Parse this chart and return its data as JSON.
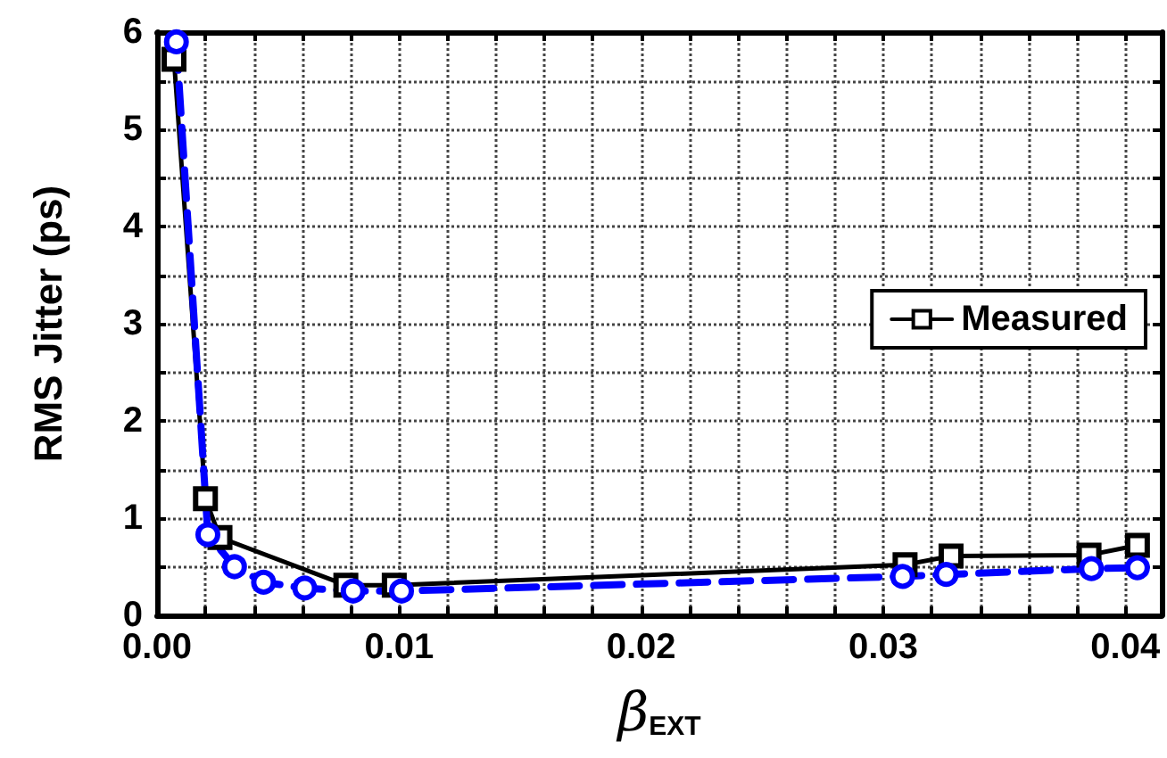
{
  "chart_data": {
    "type": "line",
    "xlabel": "β$_{EXT}$",
    "ylabel": "RMS Jitter (ps)",
    "xlim": [
      0,
      0.0415
    ],
    "ylim": [
      0,
      6
    ],
    "xticks": [
      {
        "value": 0,
        "label": "0.00"
      },
      {
        "value": 0.002,
        "label": null
      },
      {
        "value": 0.004,
        "label": null
      },
      {
        "value": 0.006,
        "label": null
      },
      {
        "value": 0.008,
        "label": null
      },
      {
        "value": 0.01,
        "label": "0.01"
      },
      {
        "value": 0.012,
        "label": null
      },
      {
        "value": 0.014,
        "label": null
      },
      {
        "value": 0.016,
        "label": null
      },
      {
        "value": 0.018,
        "label": null
      },
      {
        "value": 0.02,
        "label": "0.02"
      },
      {
        "value": 0.022,
        "label": null
      },
      {
        "value": 0.024,
        "label": null
      },
      {
        "value": 0.026,
        "label": null
      },
      {
        "value": 0.028,
        "label": null
      },
      {
        "value": 0.03,
        "label": "0.03"
      },
      {
        "value": 0.032,
        "label": null
      },
      {
        "value": 0.034,
        "label": null
      },
      {
        "value": 0.036,
        "label": null
      },
      {
        "value": 0.038,
        "label": null
      },
      {
        "value": 0.04,
        "label": "0.04"
      }
    ],
    "yticks": [
      0,
      {
        "value": 0.5,
        "label": null
      },
      1,
      {
        "value": 1.5,
        "label": null
      },
      2,
      {
        "value": 2.5,
        "label": null
      },
      3,
      {
        "value": 3.5,
        "label": null
      },
      4,
      {
        "value": 4.5,
        "label": null
      },
      5,
      {
        "value": 5.5,
        "label": null
      },
      6
    ],
    "grid": true,
    "legend": "right",
    "series": [
      {
        "name": "Measured",
        "color": "#000000",
        "marker": "square",
        "line_style": "solid",
        "x": [
          0.0007,
          0.002,
          0.0026,
          0.0078,
          0.0098,
          0.0309,
          0.0328,
          0.0385,
          0.0405
        ],
        "values": [
          5.72,
          1.2,
          0.8,
          0.31,
          0.31,
          0.52,
          0.61,
          0.62,
          0.72
        ]
      },
      {
        "color": "#0000ff",
        "marker": "circle",
        "line_style": "dashed",
        "x": [
          0.0008,
          0.0021,
          0.0032,
          0.0044,
          0.0061,
          0.0081,
          0.0101,
          0.0308,
          0.0326,
          0.0386,
          0.0405
        ],
        "values": [
          5.9,
          0.83,
          0.5,
          0.34,
          0.28,
          0.25,
          0.25,
          0.4,
          0.42,
          0.48,
          0.49
        ]
      }
    ]
  }
}
